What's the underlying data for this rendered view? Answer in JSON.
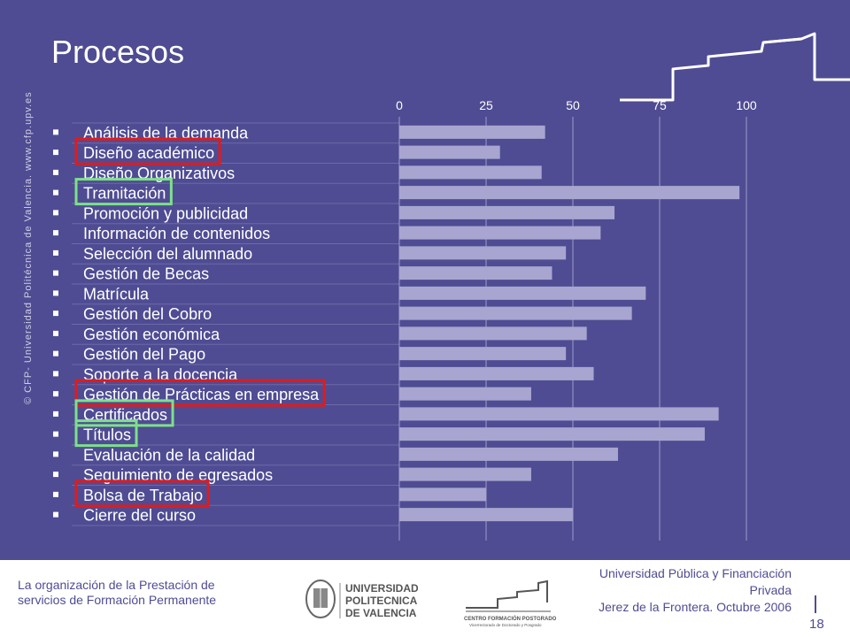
{
  "slide": {
    "title": "Procesos",
    "side_credit": "© CFP- Universidad Politécnica de Valencia. www.cfp.upv.es"
  },
  "colors": {
    "background": "#4f4c93",
    "bar": "#a8a6d0",
    "red_highlight": "#e01b1b",
    "green_highlight": "#7ee08a"
  },
  "chart_data": {
    "type": "bar",
    "orientation": "horizontal",
    "xlim": [
      0,
      100
    ],
    "ticks": [
      "0",
      "25",
      "50",
      "75",
      "100"
    ],
    "tick_values": [
      0,
      25,
      50,
      75,
      100
    ],
    "grid": true,
    "categories": [
      "Análisis de la demanda",
      "Diseño académico",
      "Diseño Organizativos",
      "Tramitación",
      "Promoción y publicidad",
      "Información de contenidos",
      "Selección del alumnado",
      "Gestión de Becas",
      "Matrícula",
      "Gestión del Cobro",
      "Gestión económica",
      "Gestión del Pago",
      "Soporte a la docencia",
      "Gestión de Prácticas en empresa",
      "Certificados",
      "Títulos",
      "Evaluación de la calidad",
      "Seguimiento de egresados",
      "Bolsa de Trabajo",
      "Cierre del curso"
    ],
    "values": [
      42,
      29,
      41,
      98,
      62,
      58,
      48,
      44,
      71,
      67,
      54,
      48,
      56,
      38,
      92,
      88,
      63,
      38,
      25,
      50
    ],
    "highlights": {
      "red": [
        "Diseño académico",
        "Gestión de Prácticas en empresa",
        "Bolsa de Trabajo"
      ],
      "green": [
        "Tramitación",
        "Certificados",
        "Títulos"
      ]
    }
  },
  "footer": {
    "left_line1": "La organización de la Prestación de",
    "left_line2": "servicios de Formación Permanente",
    "right_line1": "Universidad Pública y Financiación",
    "right_line2": "Privada",
    "right_line3": "Jerez de la Frontera. Octubre 2006",
    "page_number": "18",
    "upv_logo_line1": "UNIVERSIDAD",
    "upv_logo_line2": "POLITECNICA",
    "upv_logo_line3": "DE VALENCIA",
    "cfp_logo_line1": "CENTRO FORMACIÓN POSTGRADO",
    "cfp_logo_line2": "Vicerrectorado de Doctorado y Posgrado"
  }
}
